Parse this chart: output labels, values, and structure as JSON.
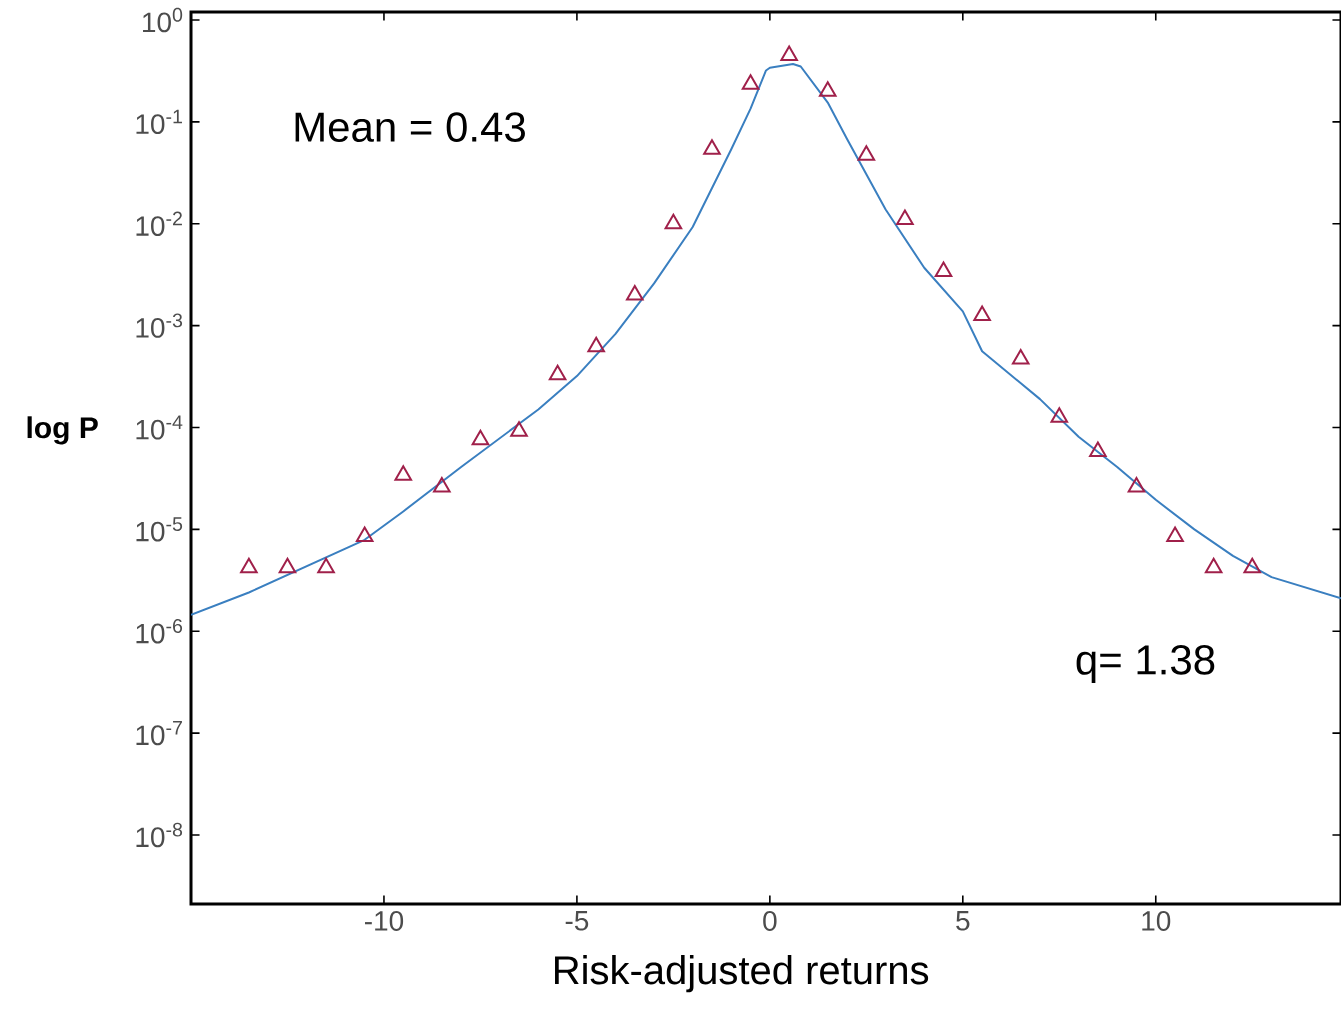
{
  "chart_data": {
    "type": "scatter",
    "xlabel": "Risk-adjusted returns",
    "ylabel": "log P",
    "log": "y",
    "grid": false,
    "xlim": [
      -15,
      14.8
    ],
    "ylim": [
      2.1e-09,
      1.2
    ],
    "xticks": [
      -10,
      -5,
      0,
      5,
      10
    ],
    "yticks": [
      {
        "value": 1,
        "label": "10$^{0}$"
      },
      {
        "value": 0.1,
        "label": "10$^{-1}$"
      },
      {
        "value": 0.01,
        "label": "10$^{-2}$"
      },
      {
        "value": 0.001,
        "label": "10$^{-3}$"
      },
      {
        "value": 0.0001,
        "label": "10$^{-4}$"
      },
      {
        "value": 1e-05,
        "label": "10$^{-5}$"
      },
      {
        "value": 1e-06,
        "label": "10$^{-6}$"
      },
      {
        "value": 1e-07,
        "label": "10$^{-7}$"
      },
      {
        "value": 1e-08,
        "label": "10$^{-8}$"
      }
    ],
    "annotations": [
      "Mean = 0.43",
      "q= 1.38"
    ],
    "series": [
      {
        "marker": "triangle",
        "color": "#a0204a",
        "x": [
          -13.5,
          -12.5,
          -11.5,
          -10.5,
          -9.5,
          -8.5,
          -7.5,
          -6.5,
          -5.5,
          -4.5,
          -3.5,
          -2.5,
          -1.5,
          -0.5,
          0.5,
          1.5,
          2.5,
          3.5,
          4.5,
          5.5,
          6.5,
          7.5,
          8.5,
          9.5,
          10.5,
          11.5,
          12.5
        ],
        "values": [
          4.2e-06,
          4.2e-06,
          4.2e-06,
          8.5e-06,
          3.4e-05,
          2.6e-05,
          7.6e-05,
          9.2e-05,
          0.00033,
          0.00062,
          0.002,
          0.01,
          0.054,
          0.235,
          0.45,
          0.2,
          0.047,
          0.011,
          0.0034,
          0.00126,
          0.00047,
          0.000126,
          5.8e-05,
          2.6e-05,
          8.5e-06,
          4.2e-06,
          4.2e-06
        ]
      },
      {
        "type": "line",
        "marker": "none",
        "line_style": "solid",
        "color": "#3a7fc0",
        "x": [
          -15,
          -13.5,
          -10.5,
          -9.5,
          -8,
          -6,
          -5,
          -4,
          -3,
          -2,
          -1,
          -0.5,
          -0.1,
          0,
          0.6,
          0.8,
          1.5,
          2,
          3,
          4,
          5,
          5.5,
          7,
          8,
          9,
          10,
          11,
          12,
          13,
          14.8
        ],
        "values": [
          1.45e-06,
          2.4e-06,
          7.9e-06,
          1.5e-05,
          4.1e-05,
          0.00015,
          0.00032,
          0.00083,
          0.0026,
          0.0093,
          0.054,
          0.135,
          0.32,
          0.34,
          0.37,
          0.35,
          0.155,
          0.068,
          0.0138,
          0.0037,
          0.00138,
          0.00056,
          0.00019,
          8.1e-05,
          4.1e-05,
          1.95e-05,
          1e-05,
          5.5e-06,
          3.4e-06,
          2.1e-06
        ]
      }
    ]
  }
}
